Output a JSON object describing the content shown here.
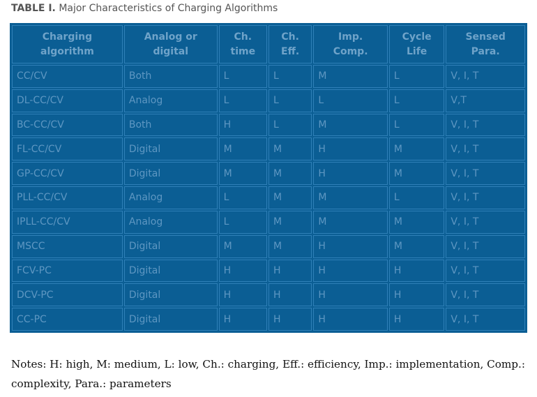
{
  "caption": {
    "label": "TABLE I.",
    "text": "Major Characteristics of Charging Algorithms"
  },
  "table": {
    "headers": [
      [
        "Charging",
        "algorithm"
      ],
      [
        "Analog or",
        "digital"
      ],
      [
        "Ch.",
        "time"
      ],
      [
        "Ch.",
        "Eff."
      ],
      [
        "Imp.",
        "Comp."
      ],
      [
        "Cycle",
        "Life"
      ],
      [
        "Sensed",
        "Para."
      ]
    ],
    "rows": [
      [
        "CC/CV",
        "Both",
        "L",
        "L",
        "M",
        "L",
        "V, I, T"
      ],
      [
        "DL-CC/CV",
        "Analog",
        "L",
        "L",
        "L",
        "L",
        "V,T"
      ],
      [
        "BC-CC/CV",
        "Both",
        "H",
        "L",
        "M",
        "L",
        "V, I, T"
      ],
      [
        "FL-CC/CV",
        "Digital",
        "M",
        "M",
        "H",
        "M",
        "V, I, T"
      ],
      [
        "GP-CC/CV",
        "Digital",
        "M",
        "M",
        "H",
        "M",
        "V, I, T"
      ],
      [
        "PLL-CC/CV",
        "Analog",
        "L",
        "M",
        "M",
        "L",
        "V, I, T"
      ],
      [
        "IPLL-CC/CV",
        "Analog",
        "L",
        "M",
        "M",
        "M",
        "V, I, T"
      ],
      [
        "MSCC",
        "Digital",
        "M",
        "M",
        "H",
        "M",
        "V, I, T"
      ],
      [
        "FCV-PC",
        "Digital",
        "H",
        "H",
        "H",
        "H",
        "V, I, T"
      ],
      [
        "DCV-PC",
        "Digital",
        "H",
        "H",
        "H",
        "H",
        "V, I, T"
      ],
      [
        "CC-PC",
        "Digital",
        "H",
        "H",
        "H",
        "H",
        "V, I, T"
      ]
    ]
  },
  "notes": "Notes: H: high, M: medium, L: low, Ch.: charging, Eff.: efficiency, Imp.: implementation, Comp.: complexity, Para.: parameters",
  "colors": {
    "table_bg": "#0b5e94",
    "cell_border": "#2f80b8",
    "cell_text": "#5e97c2",
    "header_text": "#6fa3c9"
  }
}
